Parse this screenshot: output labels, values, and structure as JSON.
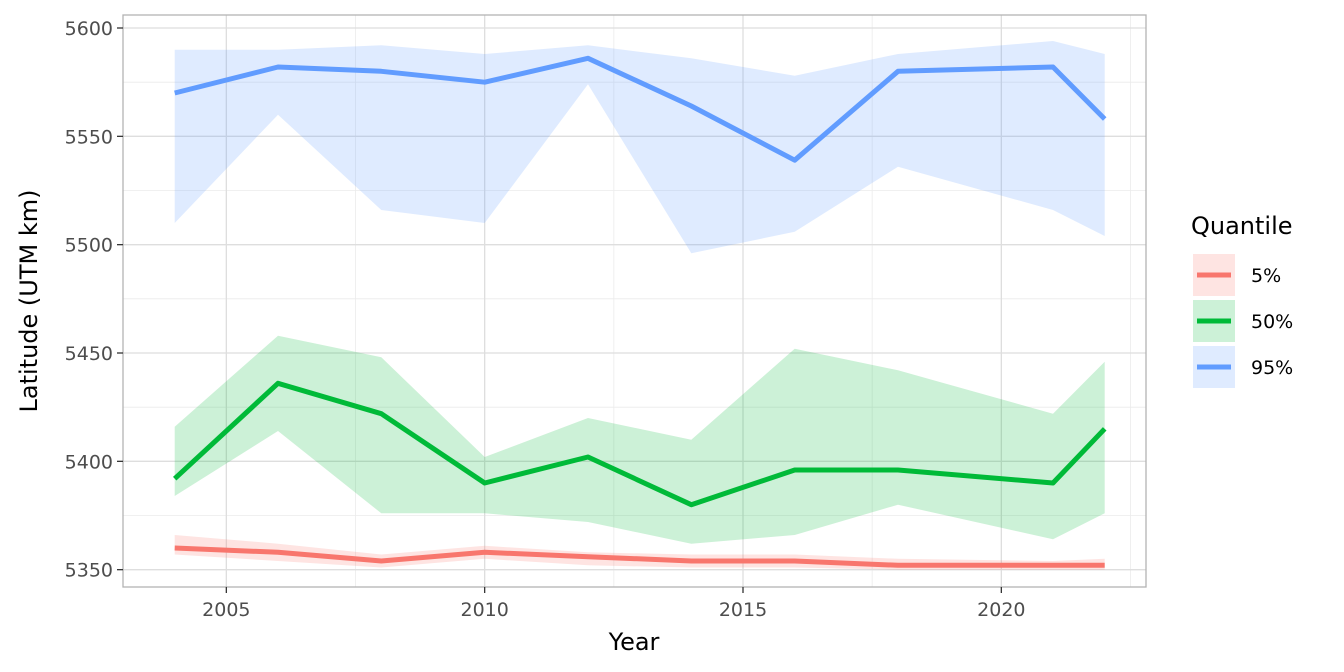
{
  "chart_data": {
    "type": "line",
    "xlabel": "Year",
    "ylabel": "Latitude (UTM km)",
    "xlim": [
      2003,
      2022.8
    ],
    "ylim": [
      5342,
      5606
    ],
    "x_ticks": [
      2005,
      2010,
      2015,
      2020
    ],
    "y_ticks": [
      5350,
      5400,
      5450,
      5500,
      5550,
      5600
    ],
    "x_tick_labels": [
      "2005",
      "2010",
      "2015",
      "2020"
    ],
    "y_tick_labels": [
      "5350",
      "5400",
      "5450",
      "5500",
      "5550",
      "5600"
    ],
    "grid": true,
    "legend": {
      "title": "Quantile",
      "position": "right"
    },
    "x": [
      2004,
      2006,
      2008,
      2010,
      2012,
      2014,
      2016,
      2018,
      2021,
      2022
    ],
    "series": [
      {
        "name": "5%",
        "color": "#F8766D",
        "values": [
          5360,
          5358,
          5354,
          5358,
          5356,
          5354,
          5354,
          5352,
          5352,
          5352
        ],
        "lower": [
          5357,
          5354,
          5351,
          5355,
          5352,
          5351,
          5351,
          5350,
          5350,
          5350
        ],
        "upper": [
          5366,
          5362,
          5357,
          5361,
          5358,
          5357,
          5357,
          5355,
          5354,
          5355
        ]
      },
      {
        "name": "50%",
        "color": "#00BA38",
        "values": [
          5392,
          5436,
          5422,
          5390,
          5402,
          5380,
          5396,
          5396,
          5390,
          5415
        ],
        "lower": [
          5384,
          5414,
          5376,
          5376,
          5372,
          5362,
          5366,
          5380,
          5364,
          5376
        ],
        "upper": [
          5416,
          5458,
          5448,
          5402,
          5420,
          5410,
          5452,
          5442,
          5422,
          5446
        ]
      },
      {
        "name": "95%",
        "color": "#619CFF",
        "values": [
          5570,
          5582,
          5580,
          5575,
          5586,
          5564,
          5539,
          5580,
          5582,
          5558
        ],
        "lower": [
          5510,
          5560,
          5516,
          5510,
          5574,
          5496,
          5506,
          5536,
          5516,
          5504
        ],
        "upper": [
          5590,
          5590,
          5592,
          5588,
          5592,
          5586,
          5578,
          5588,
          5594,
          5588
        ]
      }
    ]
  }
}
